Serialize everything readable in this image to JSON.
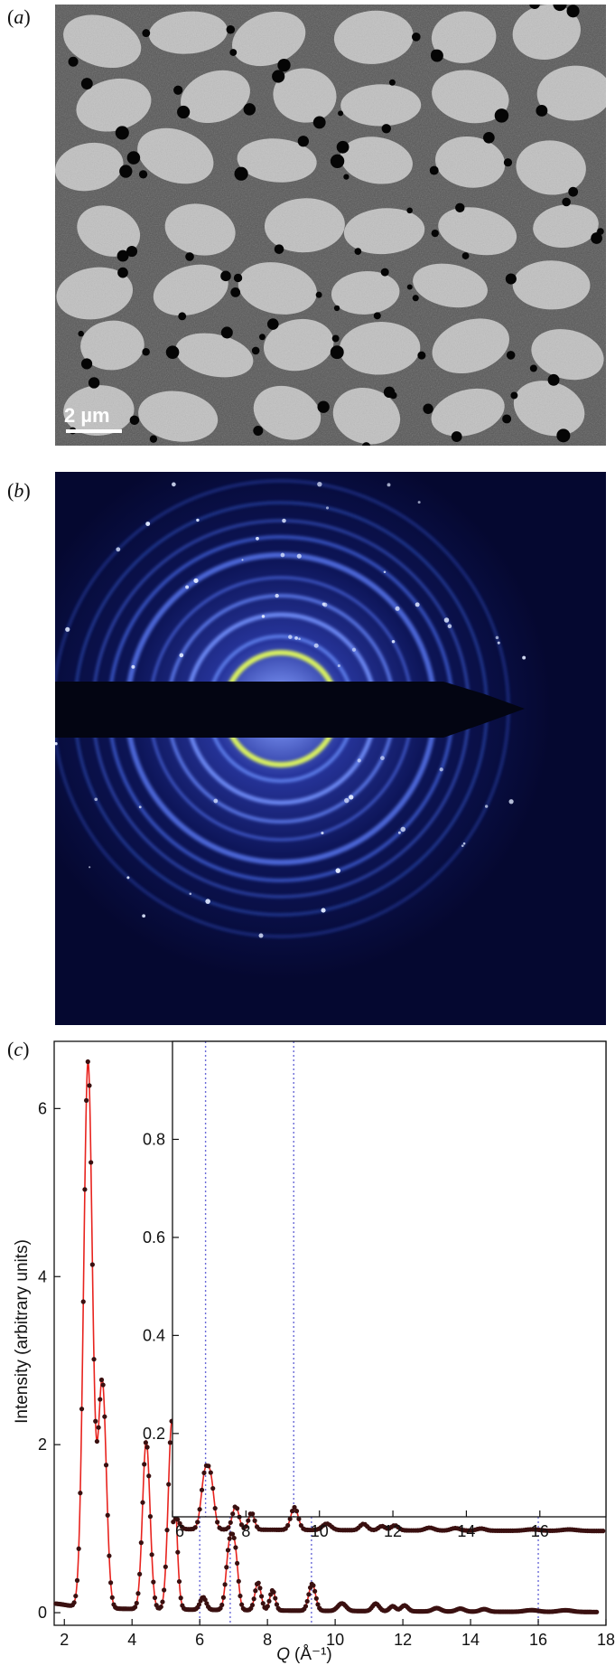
{
  "panels": {
    "a": {
      "label": "a",
      "scale_bar": "2 µm"
    },
    "b": {
      "label": "b"
    },
    "c": {
      "label": "c"
    }
  },
  "chart_data": {
    "type": "line",
    "xlabel_italic": "Q",
    "xlabel_unit": "(Å⁻¹)",
    "ylabel": "Intensity (arbitrary units)",
    "xlim": [
      1.7,
      18
    ],
    "ylim": [
      -0.15,
      6.8
    ],
    "xticks": [
      2,
      4,
      6,
      8,
      10,
      12,
      14,
      16,
      18
    ],
    "yticks": [
      0,
      2,
      4,
      6
    ],
    "vlines": [
      6.0,
      6.9,
      9.3,
      16.0
    ],
    "colors": {
      "fit_line": "#e8231e",
      "points": "#3a1010",
      "vlines": "#6a6ad8"
    },
    "peaks": [
      {
        "center": 2.7,
        "height": 6.5,
        "width": 0.13
      },
      {
        "center": 3.12,
        "height": 2.7,
        "width": 0.12
      },
      {
        "center": 4.42,
        "height": 2.0,
        "width": 0.11
      },
      {
        "center": 5.18,
        "height": 2.25,
        "width": 0.11
      },
      {
        "center": 6.1,
        "height": 0.15,
        "width": 0.09
      },
      {
        "center": 6.88,
        "height": 0.75,
        "width": 0.1
      },
      {
        "center": 7.05,
        "height": 0.6,
        "width": 0.09
      },
      {
        "center": 7.72,
        "height": 0.33,
        "width": 0.09
      },
      {
        "center": 8.15,
        "height": 0.24,
        "width": 0.08
      },
      {
        "center": 9.32,
        "height": 0.32,
        "width": 0.1
      },
      {
        "center": 10.2,
        "height": 0.09,
        "width": 0.12
      },
      {
        "center": 11.2,
        "height": 0.09,
        "width": 0.1
      },
      {
        "center": 11.7,
        "height": 0.06,
        "width": 0.09
      },
      {
        "center": 12.05,
        "height": 0.07,
        "width": 0.1
      },
      {
        "center": 13.0,
        "height": 0.04,
        "width": 0.12
      },
      {
        "center": 13.7,
        "height": 0.035,
        "width": 0.12
      },
      {
        "center": 14.4,
        "height": 0.03,
        "width": 0.12
      },
      {
        "center": 15.8,
        "height": 0.02,
        "width": 0.2
      },
      {
        "center": 16.8,
        "height": 0.02,
        "width": 0.2
      }
    ],
    "baseline": [
      0.06,
      0.05
    ],
    "inset": {
      "xlim": [
        6,
        17.8
      ],
      "ylim": [
        0.03,
        1.0
      ],
      "xticks": [
        6,
        8,
        10,
        12,
        14,
        16
      ],
      "yticks": [
        0.2,
        0.4,
        0.6,
        0.8
      ],
      "ytick_labels": [
        "0.2",
        "0.4",
        "0.6",
        "0.8"
      ]
    }
  }
}
